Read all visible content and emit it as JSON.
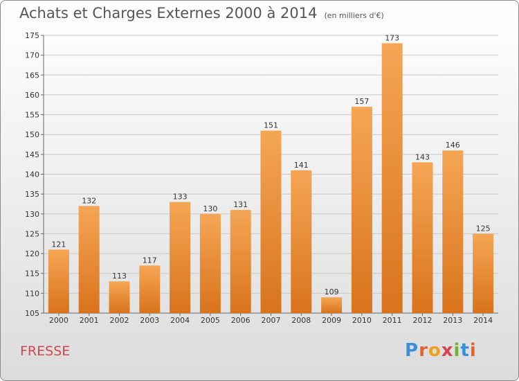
{
  "title": "Achats et Charges Externes 2000 à 2014",
  "subtitle": "(en milliers d'€)",
  "commune": "FRESSE",
  "logo": {
    "letters": [
      "P",
      "r",
      "o",
      "x",
      "i",
      "t",
      "i"
    ],
    "colors": [
      "#3a8fd6",
      "#e8622a",
      "#f0a020",
      "#d9434e",
      "#6bb33a",
      "#3a8fd6",
      "#e8622a"
    ]
  },
  "chart_data": {
    "type": "bar",
    "title": "Achats et Charges Externes 2000 à 2014",
    "subtitle": "(en milliers d'€)",
    "categories": [
      "2000",
      "2001",
      "2002",
      "2003",
      "2004",
      "2005",
      "2006",
      "2007",
      "2008",
      "2009",
      "2010",
      "2011",
      "2012",
      "2013",
      "2014"
    ],
    "values": [
      121,
      132,
      113,
      117,
      133,
      130,
      131,
      151,
      141,
      109,
      157,
      173,
      143,
      146,
      125
    ],
    "ylim": [
      105,
      175
    ],
    "yticks": [
      105,
      110,
      115,
      120,
      125,
      130,
      135,
      140,
      145,
      150,
      155,
      160,
      165,
      170,
      175
    ],
    "grid": true,
    "bar_color": "#f0943e"
  }
}
